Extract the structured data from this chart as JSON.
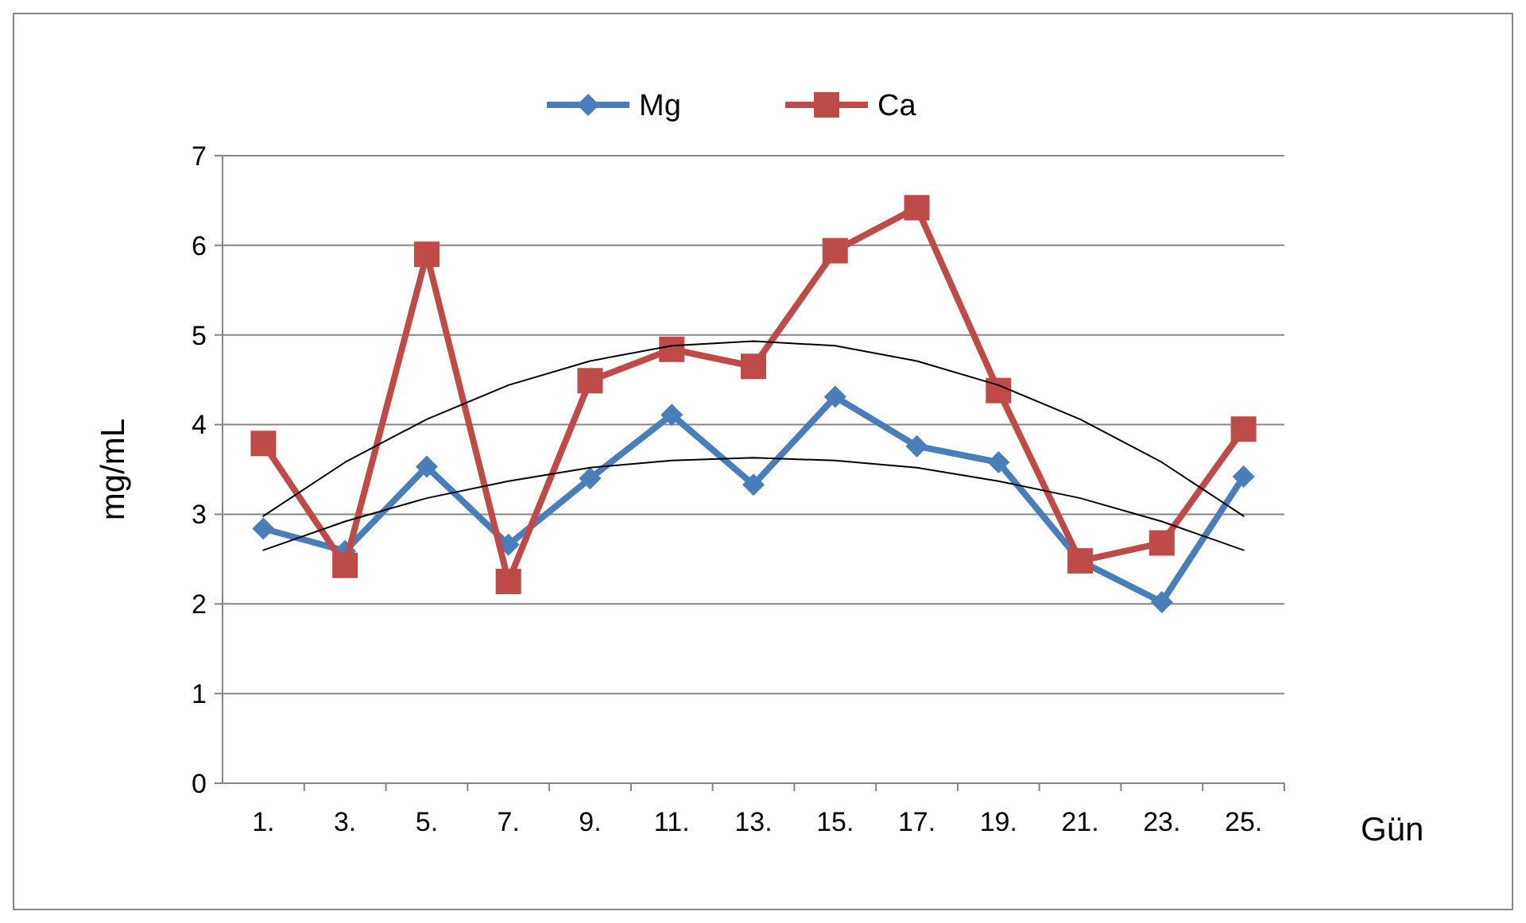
{
  "chart_data": {
    "type": "line",
    "xlabel": "Gün",
    "ylabel": "mg/mL",
    "categories": [
      "1.",
      "3.",
      "5.",
      "7.",
      "9.",
      "11.",
      "13.",
      "15.",
      "17.",
      "19.",
      "21.",
      "23.",
      "25."
    ],
    "ylim": [
      0,
      7
    ],
    "yticks": [
      0,
      1,
      2,
      3,
      4,
      5,
      6,
      7
    ],
    "grid": "y",
    "legend": "top",
    "series": [
      {
        "name": "Mg",
        "color": "#4a7ebb",
        "marker": "diamond",
        "values": [
          2.84,
          2.59,
          3.53,
          2.66,
          3.4,
          4.11,
          3.33,
          4.31,
          3.76,
          3.58,
          2.48,
          2.02,
          3.42
        ]
      },
      {
        "name": "Ca",
        "color": "#be4b48",
        "marker": "square",
        "values": [
          3.79,
          2.43,
          5.9,
          2.25,
          4.49,
          4.84,
          4.65,
          5.94,
          6.42,
          4.38,
          2.48,
          2.68,
          3.95
        ]
      },
      {
        "color": "#000000",
        "marker": "none",
        "values": [
          2.6,
          2.92,
          3.18,
          3.37,
          3.52,
          3.6,
          3.63,
          3.6,
          3.52,
          3.37,
          3.18,
          2.92,
          2.6
        ]
      },
      {
        "color": "#000000",
        "marker": "none",
        "values": [
          2.98,
          3.58,
          4.06,
          4.44,
          4.71,
          4.88,
          4.93,
          4.88,
          4.71,
          4.44,
          4.06,
          3.58,
          2.98
        ]
      }
    ]
  }
}
